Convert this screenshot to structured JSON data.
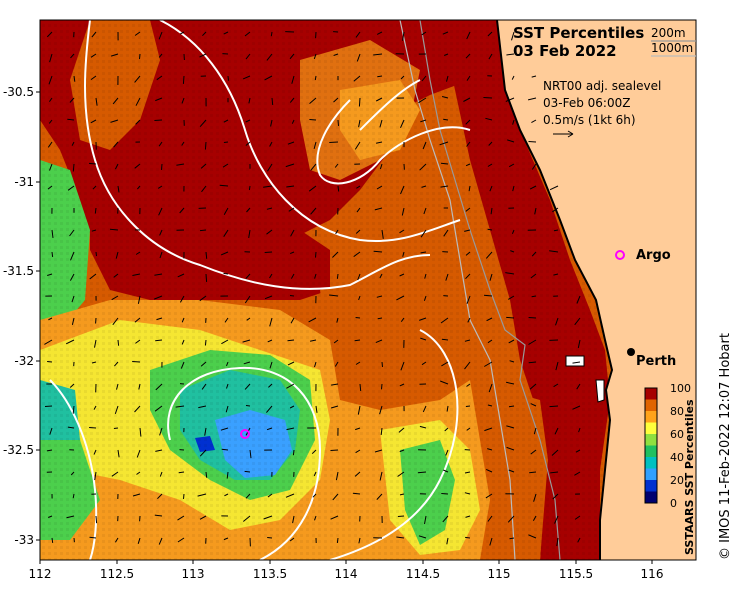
{
  "title": {
    "line1": "SST Percentiles",
    "line2": "03 Feb 2022"
  },
  "contour_legend": {
    "c200": "200m",
    "c1000": "1000m"
  },
  "current_info": {
    "line1": "NRT00 adj. sealevel",
    "line2": "03-Feb 06:00Z",
    "line3": "0.5m/s (1kt 6h)"
  },
  "y_axis": {
    "ticks": [
      "-30.5",
      "-31",
      "-31.5",
      "-32",
      "-32.5",
      "-33"
    ]
  },
  "x_axis": {
    "ticks": [
      "112",
      "112.5",
      "113",
      "113.5",
      "114",
      "114.5",
      "115",
      "115.5",
      "116"
    ]
  },
  "colorbar": {
    "label": "SSTAARS SST Percentiles",
    "ticks": [
      "100",
      "80",
      "60",
      "40",
      "20",
      "0"
    ],
    "colors": [
      "#a60000",
      "#e06400",
      "#ffa31a",
      "#ffff3c",
      "#8fe040",
      "#20c060",
      "#00c0c0",
      "#30a0ff",
      "#0030d0",
      "#000070"
    ]
  },
  "places": {
    "argo": "Argo",
    "perth": "Perth"
  },
  "credit": "© IMOS 11-Feb-2022 12:07 Hobart",
  "colors": {
    "land": "#ffcc99",
    "dark_red": "#a60000",
    "red_orange": "#d65a00",
    "orange": "#f59a1e",
    "yellow": "#f5e632",
    "green": "#4ccf4c",
    "teal": "#20c0a0",
    "blue": "#3aa0ff",
    "argo_marker": "#ff00ff"
  }
}
